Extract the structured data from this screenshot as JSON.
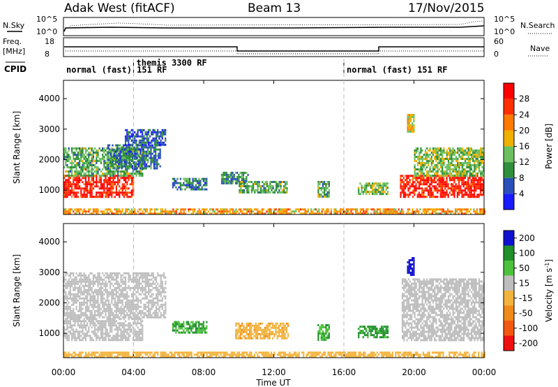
{
  "header": {
    "station": "Adak West (fitACF)",
    "beam": "Beam 13",
    "date": "17/Nov/2015"
  },
  "top_panels": {
    "nsky_label": "N.Sky",
    "nsky_ticks": [
      "10^5",
      "10^0"
    ],
    "nsearch_label": "N.Search",
    "nsearch_ticks": [
      "10^5",
      "10^0"
    ],
    "freq_label": "Freq.",
    "freq_unit": "[MHz]",
    "freq_ticks": [
      "18",
      "8"
    ],
    "nave_label": "Nave",
    "nave_ticks": [
      "60",
      "0"
    ],
    "cpid_label": "CPID"
  },
  "cpid_segments": [
    {
      "label": "normal (fast) 151 RF",
      "start": 0,
      "end": 4
    },
    {
      "label": "themis 3300 RF",
      "start": 4,
      "end": 16
    },
    {
      "label": "normal (fast) 151 RF",
      "start": 16,
      "end": 24
    }
  ],
  "x_axis": {
    "label": "Time UT",
    "ticks": [
      "00:00",
      "04:00",
      "08:00",
      "12:00",
      "16:00",
      "20:00",
      "00:00"
    ]
  },
  "colors": {
    "power": [
      "#1a1aff",
      "#2a4fb8",
      "#2f8f3a",
      "#6cc060",
      "#f0b000",
      "#ff7a00",
      "#ff3000",
      "#ff0000"
    ],
    "velocity": [
      "#1010d0",
      "#1f8f2a",
      "#4cc23c",
      "#bebebe",
      "#f2b33d",
      "#f08a18",
      "#f45810",
      "#ee1010"
    ]
  },
  "chart_data": [
    {
      "type": "heatmap",
      "panel": "power",
      "ylabel": "Slant Range [km]",
      "yticks": [
        "4000",
        "3000",
        "2000",
        "1000"
      ],
      "ylim": [
        200,
        4600
      ],
      "xlim": [
        0,
        24
      ],
      "colorbar": {
        "label": "Power [dB]",
        "ticks": [
          "28",
          "24",
          "20",
          "16",
          "12",
          "8",
          "4"
        ]
      },
      "regions": [
        {
          "t0": 0.0,
          "t1": 4.0,
          "r0": 800,
          "r1": 1500,
          "level": 28
        },
        {
          "t0": 0.0,
          "t1": 4.5,
          "r0": 1500,
          "r1": 2400,
          "level": 12
        },
        {
          "t0": 2.5,
          "t1": 5.5,
          "r0": 1700,
          "r1": 2500,
          "level": 8
        },
        {
          "t0": 3.5,
          "t1": 5.8,
          "r0": 2500,
          "r1": 3000,
          "level": 6
        },
        {
          "t0": 6.2,
          "t1": 8.2,
          "r0": 1000,
          "r1": 1400,
          "level": 8
        },
        {
          "t0": 9.0,
          "t1": 10.5,
          "r0": 1200,
          "r1": 1600,
          "level": 10
        },
        {
          "t0": 10.0,
          "t1": 12.8,
          "r0": 900,
          "r1": 1300,
          "level": 12
        },
        {
          "t0": 14.5,
          "t1": 15.2,
          "r0": 800,
          "r1": 1300,
          "level": 12
        },
        {
          "t0": 16.8,
          "t1": 18.5,
          "r0": 850,
          "r1": 1250,
          "level": 14
        },
        {
          "t0": 19.6,
          "t1": 20.0,
          "r0": 2900,
          "r1": 3500,
          "level": 18
        },
        {
          "t0": 19.2,
          "t1": 24.0,
          "r0": 800,
          "r1": 1500,
          "level": 28
        },
        {
          "t0": 20.0,
          "t1": 24.0,
          "r0": 1500,
          "r1": 2400,
          "level": 14
        },
        {
          "t0": 0.0,
          "t1": 24.0,
          "r0": 250,
          "r1": 400,
          "level": 20
        }
      ]
    },
    {
      "type": "heatmap",
      "panel": "velocity",
      "ylabel": "Slant Range [km]",
      "yticks": [
        "4000",
        "3000",
        "2000",
        "1000"
      ],
      "ylim": [
        200,
        4600
      ],
      "xlim": [
        0,
        24
      ],
      "colorbar": {
        "label": "Velocity [m s",
        "label_sup": "-1",
        "label_end": "]",
        "ticks": [
          "200",
          "100",
          "50",
          "15",
          "-15",
          "-50",
          "-100",
          "-200"
        ]
      },
      "regions": [
        {
          "t0": 0.0,
          "t1": 4.5,
          "r0": 800,
          "r1": 1500,
          "level": 0
        },
        {
          "t0": 0.0,
          "t1": 5.8,
          "r0": 1500,
          "r1": 3000,
          "level": 0
        },
        {
          "t0": 6.2,
          "t1": 8.2,
          "r0": 1000,
          "r1": 1400,
          "level": 30
        },
        {
          "t0": 9.8,
          "t1": 12.8,
          "r0": 850,
          "r1": 1350,
          "level": -40
        },
        {
          "t0": 14.5,
          "t1": 15.2,
          "r0": 800,
          "r1": 1300,
          "level": 30
        },
        {
          "t0": 16.8,
          "t1": 18.5,
          "r0": 850,
          "r1": 1250,
          "level": 40
        },
        {
          "t0": 19.6,
          "t1": 20.0,
          "r0": 2900,
          "r1": 3500,
          "level": 200
        },
        {
          "t0": 19.3,
          "t1": 24.0,
          "r0": 800,
          "r1": 2800,
          "level": 0
        },
        {
          "t0": 0.0,
          "t1": 24.0,
          "r0": 250,
          "r1": 400,
          "level": -30
        }
      ]
    }
  ]
}
